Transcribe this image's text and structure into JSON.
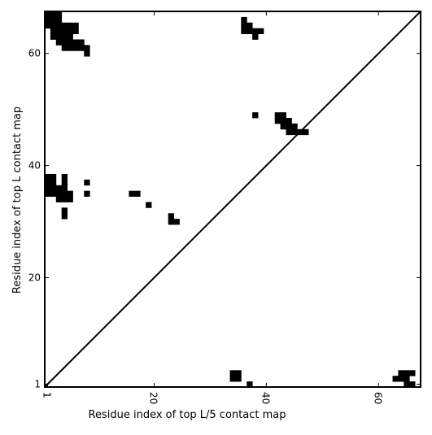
{
  "chart_data": {
    "type": "heatmap",
    "xlabel": "Residue index of top L/5 contact map",
    "ylabel": "Residue index of top L contact map",
    "xlim": [
      0.5,
      67.5
    ],
    "ylim": [
      0.5,
      67.5
    ],
    "x_ticks": [
      {
        "value": 1,
        "label": "1"
      },
      {
        "value": 20,
        "label": "20"
      },
      {
        "value": 40,
        "label": "40"
      },
      {
        "value": 60,
        "label": "60"
      }
    ],
    "y_ticks": [
      {
        "value": 1,
        "label": "1"
      },
      {
        "value": 20,
        "label": "20"
      },
      {
        "value": 40,
        "label": "40"
      },
      {
        "value": 60,
        "label": "60"
      }
    ],
    "diagonal": {
      "from": [
        0.5,
        0.5
      ],
      "to": [
        67.5,
        67.5
      ]
    },
    "cell_color": "#000000",
    "contacts_upper_left": [
      [
        1,
        67
      ],
      [
        2,
        67
      ],
      [
        3,
        67
      ],
      [
        1,
        66
      ],
      [
        2,
        66
      ],
      [
        3,
        66
      ],
      [
        1,
        65
      ],
      [
        2,
        65
      ],
      [
        3,
        65
      ],
      [
        4,
        65
      ],
      [
        5,
        65
      ],
      [
        6,
        65
      ],
      [
        2,
        64
      ],
      [
        3,
        64
      ],
      [
        4,
        64
      ],
      [
        5,
        64
      ],
      [
        6,
        64
      ],
      [
        2,
        63
      ],
      [
        3,
        63
      ],
      [
        4,
        63
      ],
      [
        5,
        63
      ],
      [
        3,
        62
      ],
      [
        4,
        62
      ],
      [
        5,
        62
      ],
      [
        6,
        62
      ],
      [
        7,
        62
      ],
      [
        4,
        61
      ],
      [
        5,
        61
      ],
      [
        6,
        61
      ],
      [
        7,
        61
      ],
      [
        8,
        61
      ],
      [
        8,
        60
      ],
      [
        36,
        66
      ],
      [
        36,
        65
      ],
      [
        37,
        65
      ],
      [
        36,
        64
      ],
      [
        37,
        64
      ],
      [
        38,
        64
      ],
      [
        39,
        64
      ],
      [
        38,
        63
      ],
      [
        38,
        49
      ],
      [
        42,
        49
      ],
      [
        43,
        49
      ],
      [
        42,
        48
      ],
      [
        43,
        48
      ],
      [
        44,
        48
      ],
      [
        43,
        47
      ],
      [
        44,
        47
      ],
      [
        45,
        47
      ],
      [
        44,
        46
      ],
      [
        45,
        46
      ],
      [
        46,
        46
      ],
      [
        47,
        46
      ],
      [
        1,
        38
      ],
      [
        2,
        38
      ],
      [
        4,
        38
      ],
      [
        1,
        37
      ],
      [
        2,
        37
      ],
      [
        4,
        37
      ],
      [
        8,
        37
      ],
      [
        1,
        36
      ],
      [
        2,
        36
      ],
      [
        3,
        36
      ],
      [
        4,
        36
      ],
      [
        1,
        35
      ],
      [
        2,
        35
      ],
      [
        3,
        35
      ],
      [
        4,
        35
      ],
      [
        5,
        35
      ],
      [
        8,
        35
      ],
      [
        16,
        35
      ],
      [
        17,
        35
      ],
      [
        3,
        34
      ],
      [
        4,
        34
      ],
      [
        5,
        34
      ],
      [
        19,
        33
      ],
      [
        4,
        32
      ],
      [
        4,
        31
      ],
      [
        23,
        31
      ],
      [
        23,
        30
      ],
      [
        24,
        30
      ]
    ],
    "contacts_lower_right": [
      [
        34,
        3
      ],
      [
        35,
        3
      ],
      [
        34,
        2
      ],
      [
        35,
        2
      ],
      [
        37,
        1
      ],
      [
        64,
        3
      ],
      [
        65,
        3
      ],
      [
        66,
        3
      ],
      [
        63,
        2
      ],
      [
        64,
        2
      ],
      [
        65,
        2
      ],
      [
        65,
        1
      ],
      [
        66,
        1
      ]
    ]
  }
}
